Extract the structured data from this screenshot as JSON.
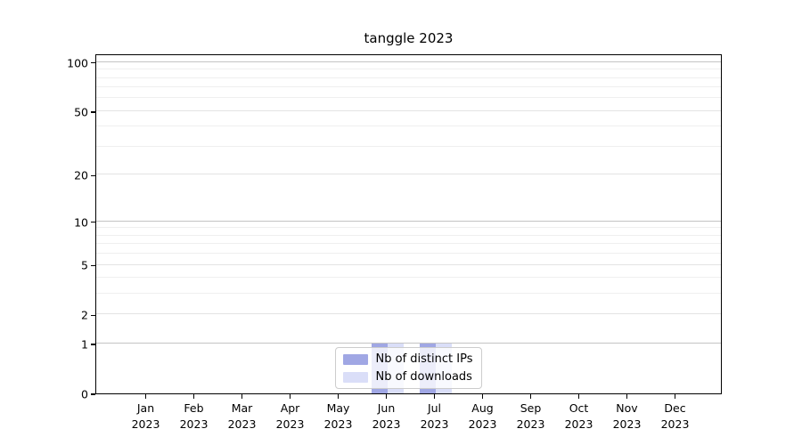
{
  "title": "tanggle 2023",
  "chart_data": {
    "type": "bar",
    "title": "tanggle 2023",
    "categories": [
      "Jan 2023",
      "Feb 2023",
      "Mar 2023",
      "Apr 2023",
      "May 2023",
      "Jun 2023",
      "Jul 2023",
      "Aug 2023",
      "Sep 2023",
      "Oct 2023",
      "Nov 2023",
      "Dec 2023"
    ],
    "series": [
      {
        "name": "Nb of distinct IPs",
        "color": "#a0a7e4",
        "values": [
          0,
          0,
          0,
          0,
          0,
          1,
          1,
          0,
          0,
          0,
          0,
          0
        ]
      },
      {
        "name": "Nb of downloads",
        "color": "#dadef8",
        "values": [
          0,
          0,
          0,
          0,
          0,
          1,
          1,
          0,
          0,
          0,
          0,
          0
        ]
      }
    ],
    "xlabel": "",
    "ylabel": "",
    "yscale": "log1p",
    "ylim": [
      0,
      113
    ],
    "yticks": [
      0,
      1,
      2,
      5,
      10,
      20,
      50,
      100
    ],
    "major_yticks": [
      1,
      10,
      100
    ],
    "minor_gridlines": [
      3,
      4,
      6,
      7,
      8,
      9,
      30,
      40,
      60,
      70,
      80,
      90
    ],
    "grid": "horizontal",
    "legend_position": "lower center"
  },
  "colors": {
    "distinct_ips": "#a0a7e4",
    "downloads": "#dadef8",
    "frame": "#000000",
    "grid_major": "#c4c4c4",
    "grid_minor": "#efefef",
    "background": "#ffffff"
  }
}
